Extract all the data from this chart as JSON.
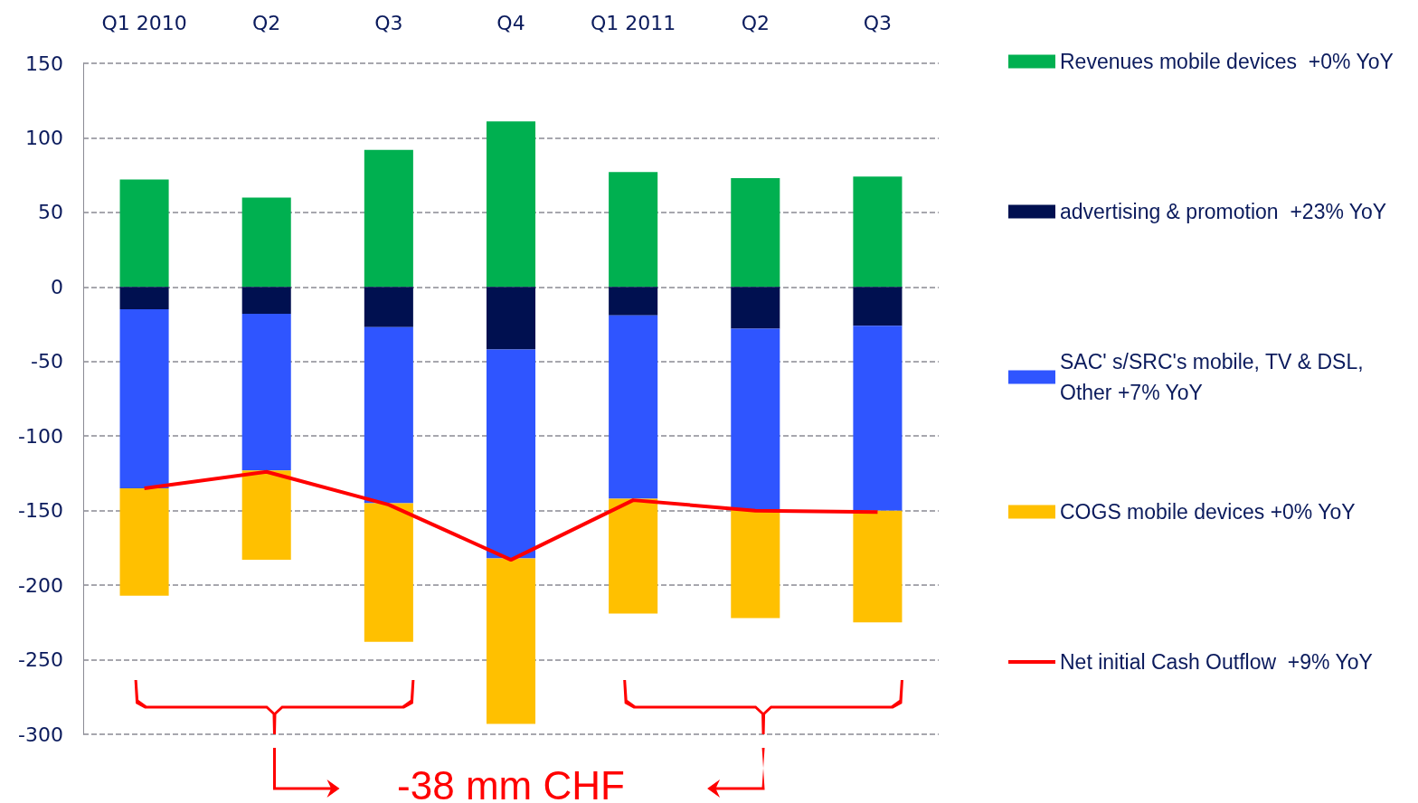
{
  "chart_data": {
    "type": "bar",
    "stacked": true,
    "categories": [
      "Q1 2010",
      "Q2",
      "Q3",
      "Q4",
      "Q1 2011",
      "Q2",
      "Q3"
    ],
    "series": [
      {
        "name": "Revenues mobile devices  +0% YoY",
        "color": "#00b050",
        "values": [
          72,
          60,
          92,
          111,
          77,
          73,
          74
        ]
      },
      {
        "name": "advertising & promotion  +23% YoY",
        "color": "#001050",
        "values": [
          -15,
          -18,
          -27,
          -42,
          -19,
          -28,
          -26
        ]
      },
      {
        "name": "SAC' s/SRC's mobile, TV & DSL, Other +7% YoY",
        "color": "#2f55ff",
        "values": [
          -120,
          -105,
          -118,
          -140,
          -123,
          -121,
          -124
        ]
      },
      {
        "name": "COGS mobile devices +0% YoY",
        "color": "#ffc000",
        "values": [
          -72,
          -60,
          -93,
          -111,
          -77,
          -73,
          -75
        ]
      },
      {
        "name": "Net initial Cash Outflow  +9% YoY",
        "type": "line",
        "color": "#ff0000",
        "marker": "none",
        "values": [
          -135,
          -124,
          -146,
          -183,
          -143,
          -150,
          -151
        ]
      }
    ],
    "ylim": [
      -300,
      150
    ],
    "yticks": [
      -300,
      -250,
      -200,
      -150,
      -100,
      -50,
      0,
      50,
      100,
      150
    ],
    "grid": "y",
    "legend": "right",
    "annotations": [
      "-38 mm CHF"
    ]
  }
}
